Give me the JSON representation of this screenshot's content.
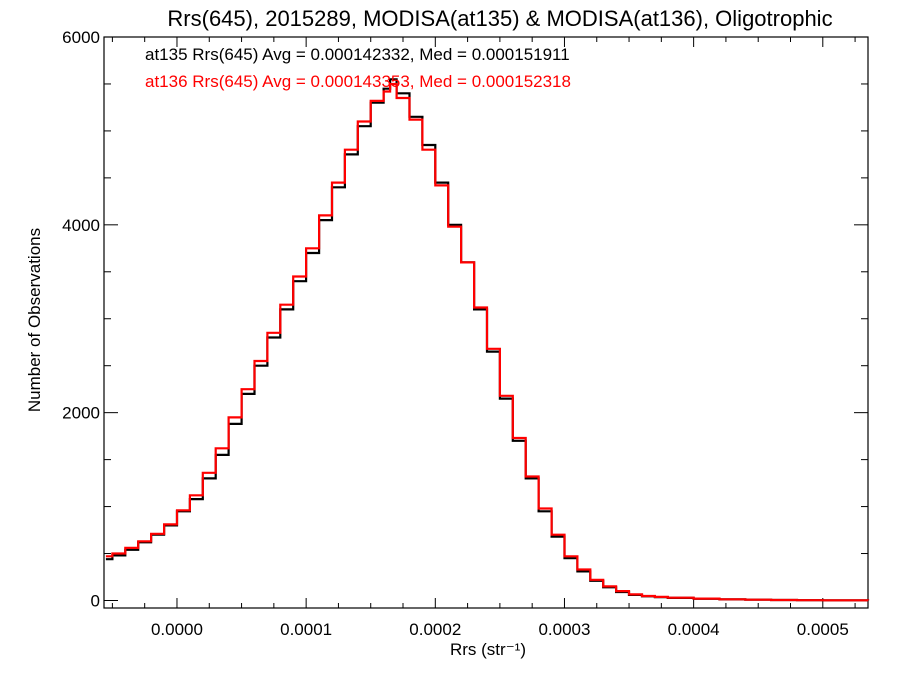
{
  "chart_data": {
    "type": "line",
    "title": "Rrs(645), 2015289, MODISA(at135) & MODISA(at136), Oligotrophic",
    "xlabel": "Rrs (str⁻¹)",
    "ylabel": "Number of Observations",
    "xlim": [
      -5.65e-05,
      0.000535
    ],
    "ylim": [
      -80,
      6000
    ],
    "grid": false,
    "legend_position": "top-left",
    "x_ticks": [
      0.0,
      0.0001,
      0.0002,
      0.0003,
      0.0004,
      0.0005
    ],
    "x_tick_labels": [
      "0.0000",
      "0.0001",
      "0.0002",
      "0.0003",
      "0.0004",
      "0.0005"
    ],
    "y_ticks": [
      0,
      2000,
      4000,
      6000
    ],
    "y_tick_labels": [
      "0",
      "2000",
      "4000",
      "6000"
    ],
    "legend": [
      {
        "text": "at135 Rrs(645) Avg = 0.000142332, Med = 0.000151911",
        "color": "#000000"
      },
      {
        "text": "at136 Rrs(645) Avg = 0.000143353, Med = 0.000152318",
        "color": "#ff0000"
      }
    ],
    "x": [
      -5.5e-05,
      -5e-05,
      -4e-05,
      -3e-05,
      -2e-05,
      -1e-05,
      0.0,
      1e-05,
      2e-05,
      3e-05,
      4e-05,
      5e-05,
      6e-05,
      7e-05,
      8e-05,
      9e-05,
      0.0001,
      0.00011,
      0.00012,
      0.00013,
      0.00014,
      0.00015,
      0.00016,
      0.000165,
      0.00017,
      0.00018,
      0.00019,
      0.0002,
      0.00021,
      0.00022,
      0.00023,
      0.00024,
      0.00025,
      0.00026,
      0.00027,
      0.00028,
      0.00029,
      0.0003,
      0.00031,
      0.00032,
      0.00033,
      0.00034,
      0.00035,
      0.00036,
      0.00037,
      0.00038,
      0.0004,
      0.00042,
      0.00044,
      0.00046,
      0.00048,
      0.0005,
      0.000535
    ],
    "series": [
      {
        "color": "#000000",
        "values": [
          440,
          480,
          540,
          620,
          700,
          800,
          950,
          1080,
          1300,
          1550,
          1880,
          2200,
          2500,
          2800,
          3100,
          3400,
          3700,
          4050,
          4400,
          4750,
          5050,
          5300,
          5450,
          5550,
          5400,
          5150,
          4850,
          4450,
          4000,
          3600,
          3100,
          2650,
          2150,
          1700,
          1300,
          950,
          680,
          450,
          310,
          210,
          140,
          90,
          60,
          45,
          35,
          28,
          18,
          12,
          8,
          5,
          3,
          2,
          1
        ]
      },
      {
        "color": "#ff0000",
        "values": [
          470,
          500,
          560,
          630,
          710,
          810,
          960,
          1120,
          1360,
          1620,
          1950,
          2250,
          2550,
          2850,
          3150,
          3450,
          3750,
          4100,
          4450,
          4800,
          5100,
          5320,
          5420,
          5500,
          5350,
          5120,
          4800,
          4420,
          3980,
          3600,
          3120,
          2680,
          2180,
          1730,
          1320,
          980,
          700,
          470,
          330,
          220,
          150,
          100,
          65,
          48,
          38,
          30,
          20,
          13,
          8,
          5,
          3,
          2,
          1
        ]
      }
    ]
  }
}
